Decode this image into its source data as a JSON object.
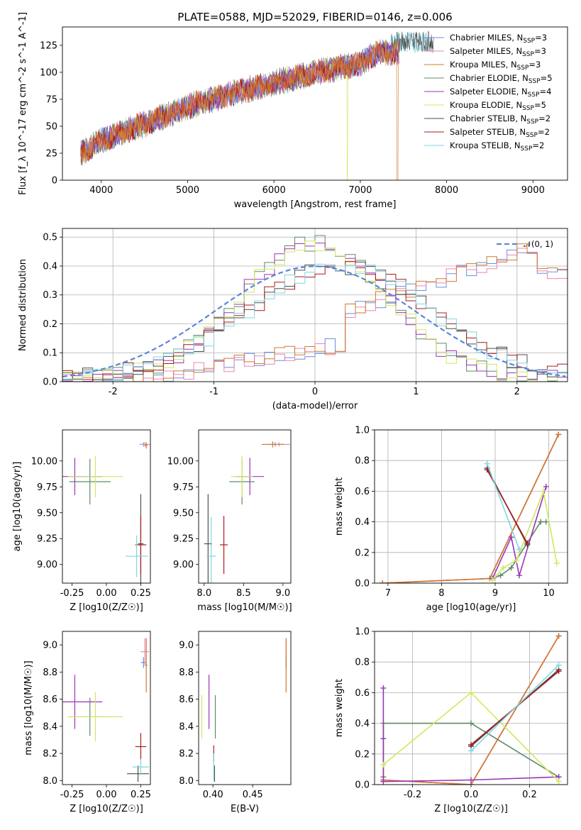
{
  "figure": {
    "title": "PLATE=0588, MJD=52029, FIBERID=0146, z=0.006"
  },
  "series_styles": [
    {
      "name": "Chabrier MILES, N_SSP=3",
      "nssp": "3",
      "label_base": "Chabrier MILES, N",
      "color": "#6a8ee0"
    },
    {
      "name": "Salpeter MILES, N_SSP=3",
      "nssp": "3",
      "label_base": "Salpeter MILES, N",
      "color": "#e887b6"
    },
    {
      "name": "Kroupa MILES, N_SSP=3",
      "nssp": "3",
      "label_base": "Kroupa MILES, N",
      "color": "#d3782b"
    },
    {
      "name": "Chabrier ELODIE, N_SSP=5",
      "nssp": "5",
      "label_base": "Chabrier ELODIE, N",
      "color": "#5f8a68"
    },
    {
      "name": "Salpeter ELODIE, N_SSP=4",
      "nssp": "4",
      "label_base": "Salpeter ELODIE, N",
      "color": "#9b35b5"
    },
    {
      "name": "Kroupa ELODIE, N_SSP=5",
      "nssp": "5",
      "label_base": "Kroupa ELODIE, N",
      "color": "#cfe860"
    },
    {
      "name": "Chabrier STELIB, N_SSP=2",
      "nssp": "2",
      "label_base": "Chabrier STELIB, N",
      "color": "#4f4f4f"
    },
    {
      "name": "Salpeter STELIB, N_SSP=2",
      "nssp": "2",
      "label_base": "Salpeter STELIB, N",
      "color": "#a81c1c"
    },
    {
      "name": "Kroupa STELIB, N_SSP=2",
      "nssp": "2",
      "label_base": "Kroupa STELIB, N",
      "color": "#7fd6e0"
    }
  ],
  "chart_data": [
    {
      "id": "spectrum",
      "type": "line",
      "title": "PLATE=0588, MJD=52029, FIBERID=0146, z=0.006",
      "xlabel": "wavelength [Angstrom, rest frame]",
      "ylabel": "Flux [f_λ 10^-17 erg cm^-2 s^-1 A^-1]",
      "xlim": [
        3550,
        9400
      ],
      "ylim": [
        0,
        142
      ],
      "xticks": [
        4000,
        5000,
        6000,
        7000,
        8000,
        9000
      ],
      "yticks": [
        0,
        25,
        50,
        75,
        100,
        125
      ],
      "grid": false,
      "legend": "right",
      "flux_trend": {
        "x": [
          3760,
          4000,
          4500,
          5000,
          5500,
          6000,
          6500,
          7000,
          7200
        ],
        "y": [
          25,
          37,
          52,
          68,
          80,
          90,
          100,
          108,
          118
        ]
      },
      "wavelength_range": [
        3760,
        7450
      ]
    },
    {
      "id": "residuals",
      "type": "histogram",
      "xlabel": "(data-model)/error",
      "ylabel": "Normed distribution",
      "xlim": [
        -2.5,
        2.5
      ],
      "ylim": [
        0,
        0.53
      ],
      "xticks": [
        -2,
        -1,
        0,
        1,
        2
      ],
      "yticks": [
        0.0,
        0.1,
        0.2,
        0.3,
        0.4,
        0.5
      ],
      "grid": true,
      "legend": "top-right",
      "reference": {
        "name": "N(0,1)",
        "label": "𝒩(0, 1)",
        "mean": 0,
        "std": 1,
        "color": "#5b86d6"
      },
      "groups": [
        {
          "series": [
            "Chabrier MILES, N_SSP=3",
            "Salpeter MILES, N_SSP=3",
            "Kroupa MILES, N_SSP=3"
          ],
          "kind": "rising",
          "amp": 0.45,
          "start": -1.5,
          "end": 2.2
        },
        {
          "series": [
            "Chabrier ELODIE, N_SSP=5",
            "Salpeter ELODIE, N_SSP=4",
            "Kroupa ELODIE, N_SSP=5"
          ],
          "kind": "gauss",
          "mean": 0.0,
          "std": 0.72,
          "peak": 0.47
        },
        {
          "series": [
            "Chabrier STELIB, N_SSP=2",
            "Salpeter STELIB, N_SSP=2",
            "Kroupa STELIB, N_SSP=2"
          ],
          "kind": "gauss",
          "mean": 0.25,
          "std": 0.9,
          "peak": 0.39
        }
      ]
    },
    {
      "id": "age_vs_Z",
      "type": "errorbar",
      "xlabel": "Z [log10(Z/Z☉)]",
      "ylabel": "age  [log10(age/yr)]",
      "xlim": [
        -0.32,
        0.32
      ],
      "ylim": [
        8.82,
        10.3
      ],
      "xticks": [
        -0.25,
        0.0,
        0.25
      ],
      "yticks": [
        9.0,
        9.25,
        9.5,
        9.75,
        10.0
      ],
      "points": [
        {
          "s": 0,
          "x": 0.27,
          "y": 10.16,
          "xe": 0.02,
          "ye": 0.02
        },
        {
          "s": 1,
          "x": 0.28,
          "y": 10.16,
          "xe": 0.04,
          "ye": 0.02
        },
        {
          "s": 2,
          "x": 0.29,
          "y": 10.15,
          "xe": 0.01,
          "ye": 0.03
        },
        {
          "s": 3,
          "x": -0.12,
          "y": 9.8,
          "xe": 0.15,
          "ye": 0.22
        },
        {
          "s": 4,
          "x": -0.23,
          "y": 9.85,
          "xe": 0.2,
          "ye": 0.18
        },
        {
          "s": 5,
          "x": -0.08,
          "y": 9.85,
          "xe": 0.2,
          "ye": 0.2
        },
        {
          "s": 6,
          "x": 0.25,
          "y": 9.2,
          "xe": 0.02,
          "ye": 0.48
        },
        {
          "s": 7,
          "x": 0.25,
          "y": 9.19,
          "xe": 0.04,
          "ye": 0.28
        },
        {
          "s": 8,
          "x": 0.22,
          "y": 9.08,
          "xe": 0.08,
          "ye": 0.2
        }
      ]
    },
    {
      "id": "age_vs_mass",
      "type": "errorbar",
      "xlabel": "mass [log10(M/M☉)]",
      "ylabel": "",
      "xlim": [
        7.93,
        9.1
      ],
      "ylim": [
        8.82,
        10.3
      ],
      "xticks": [
        8.0,
        8.5,
        9.0
      ],
      "yticks": [
        9.0,
        9.25,
        9.5,
        9.75,
        10.0
      ],
      "points": [
        {
          "s": 0,
          "x": 8.9,
          "y": 10.16,
          "xe": 0.12,
          "ye": 0.02
        },
        {
          "s": 1,
          "x": 8.95,
          "y": 10.16,
          "xe": 0.14,
          "ye": 0.02
        },
        {
          "s": 2,
          "x": 8.87,
          "y": 10.16,
          "xe": 0.14,
          "ye": 0.03
        },
        {
          "s": 3,
          "x": 8.48,
          "y": 9.8,
          "xe": 0.16,
          "ye": 0.22
        },
        {
          "s": 4,
          "x": 8.58,
          "y": 9.85,
          "xe": 0.18,
          "ye": 0.18
        },
        {
          "s": 5,
          "x": 8.48,
          "y": 9.85,
          "xe": 0.14,
          "ye": 0.2
        },
        {
          "s": 6,
          "x": 8.05,
          "y": 9.2,
          "xe": 0.05,
          "ye": 0.48
        },
        {
          "s": 7,
          "x": 8.25,
          "y": 9.19,
          "xe": 0.05,
          "ye": 0.28
        },
        {
          "s": 8,
          "x": 8.09,
          "y": 9.08,
          "xe": 0.06,
          "ye": 0.38
        }
      ]
    },
    {
      "id": "weight_vs_age",
      "type": "line",
      "xlabel": "age  [log10(age/yr)]",
      "ylabel": "mass weight",
      "xlim": [
        6.75,
        10.35
      ],
      "ylim": [
        0,
        1.0
      ],
      "xticks": [
        7,
        8,
        9,
        10
      ],
      "yticks": [
        0.0,
        0.2,
        0.4,
        0.6,
        0.8,
        1.0
      ],
      "grid": true,
      "lines": [
        {
          "s": 0,
          "x": [
            6.9,
            8.9,
            10.18
          ],
          "y": [
            0.0,
            0.03,
            0.97
          ]
        },
        {
          "s": 1,
          "x": [
            6.9,
            8.9,
            10.18
          ],
          "y": [
            0.0,
            0.03,
            0.97
          ]
        },
        {
          "s": 2,
          "x": [
            6.9,
            8.9,
            10.18
          ],
          "y": [
            0.0,
            0.03,
            0.97
          ]
        },
        {
          "s": 3,
          "x": [
            8.95,
            9.1,
            9.3,
            9.85,
            9.95
          ],
          "y": [
            0.03,
            0.05,
            0.1,
            0.4,
            0.4
          ]
        },
        {
          "s": 4,
          "x": [
            8.95,
            9.3,
            9.45,
            9.95
          ],
          "y": [
            0.03,
            0.3,
            0.05,
            0.63
          ]
        },
        {
          "s": 5,
          "x": [
            8.95,
            9.15,
            9.4,
            9.9,
            10.15
          ],
          "y": [
            0.02,
            0.1,
            0.15,
            0.6,
            0.13
          ]
        },
        {
          "s": 6,
          "x": [
            8.85,
            9.6
          ],
          "y": [
            0.75,
            0.25
          ]
        },
        {
          "s": 7,
          "x": [
            8.85,
            9.6
          ],
          "y": [
            0.74,
            0.26
          ]
        },
        {
          "s": 8,
          "x": [
            8.85,
            9.45
          ],
          "y": [
            0.78,
            0.22
          ]
        }
      ]
    },
    {
      "id": "mass_vs_Z",
      "type": "errorbar",
      "xlabel": "Z [log10(Z/Z☉)]",
      "ylabel": "mass [log10(M/M☉)]",
      "xlim": [
        -0.32,
        0.32
      ],
      "ylim": [
        7.97,
        9.1
      ],
      "xticks": [
        -0.25,
        0.0,
        0.25
      ],
      "yticks": [
        8.0,
        8.2,
        8.4,
        8.6,
        8.8,
        9.0
      ],
      "points": [
        {
          "s": 0,
          "x": 0.27,
          "y": 8.87,
          "xe": 0.02,
          "ye": 0.04
        },
        {
          "s": 1,
          "x": 0.28,
          "y": 8.95,
          "xe": 0.03,
          "ye": 0.1
        },
        {
          "s": 2,
          "x": 0.29,
          "y": 8.85,
          "xe": 0.01,
          "ye": 0.2
        },
        {
          "s": 3,
          "x": -0.12,
          "y": 8.47,
          "xe": 0.15,
          "ye": 0.14
        },
        {
          "s": 4,
          "x": -0.23,
          "y": 8.58,
          "xe": 0.2,
          "ye": 0.2
        },
        {
          "s": 5,
          "x": -0.08,
          "y": 8.47,
          "xe": 0.2,
          "ye": 0.18
        },
        {
          "s": 6,
          "x": 0.23,
          "y": 8.05,
          "xe": 0.08,
          "ye": 0.06
        },
        {
          "s": 7,
          "x": 0.25,
          "y": 8.25,
          "xe": 0.04,
          "ye": 0.1
        },
        {
          "s": 8,
          "x": 0.25,
          "y": 8.1,
          "xe": 0.06,
          "ye": 0.06
        }
      ]
    },
    {
      "id": "mass_vs_EBV",
      "type": "errorbar",
      "xlabel": "E(B-V)",
      "ylabel": "",
      "xlim": [
        0.382,
        0.498
      ],
      "ylim": [
        7.97,
        9.1
      ],
      "xticks": [
        0.4,
        0.45
      ],
      "yticks": [
        8.0,
        8.2,
        8.4,
        8.6,
        8.8,
        9.0
      ],
      "points": [
        {
          "s": 0,
          "x": 0.492,
          "y": 8.87,
          "xe": 0,
          "ye": 0.04
        },
        {
          "s": 1,
          "x": 0.492,
          "y": 8.95,
          "xe": 0,
          "ye": 0.1
        },
        {
          "s": 2,
          "x": 0.492,
          "y": 8.85,
          "xe": 0,
          "ye": 0.2
        },
        {
          "s": 3,
          "x": 0.403,
          "y": 8.47,
          "xe": 0,
          "ye": 0.16
        },
        {
          "s": 4,
          "x": 0.395,
          "y": 8.58,
          "xe": 0,
          "ye": 0.2
        },
        {
          "s": 5,
          "x": 0.386,
          "y": 8.47,
          "xe": 0,
          "ye": 0.16
        },
        {
          "s": 6,
          "x": 0.402,
          "y": 8.05,
          "xe": 0,
          "ye": 0.06
        },
        {
          "s": 7,
          "x": 0.401,
          "y": 8.2,
          "xe": 0,
          "ye": 0.06
        },
        {
          "s": 8,
          "x": 0.401,
          "y": 8.1,
          "xe": 0,
          "ye": 0.1
        }
      ]
    },
    {
      "id": "weight_vs_Z",
      "type": "line",
      "xlabel": "Z [log10(Z/Z☉)]",
      "ylabel": "mass weight",
      "xlim": [
        -0.33,
        0.33
      ],
      "ylim": [
        0,
        1.0
      ],
      "xticks": [
        -0.2,
        0.0,
        0.2
      ],
      "yticks": [
        0.0,
        0.2,
        0.4,
        0.6,
        0.8,
        1.0
      ],
      "grid": true,
      "lines": [
        {
          "s": 0,
          "x": [
            -0.3,
            0.0,
            0.3
          ],
          "y": [
            0.03,
            0.0,
            0.97
          ]
        },
        {
          "s": 1,
          "x": [
            -0.3,
            0.0,
            0.3
          ],
          "y": [
            0.03,
            0.0,
            0.97
          ]
        },
        {
          "s": 2,
          "x": [
            -0.3,
            0.0,
            0.3
          ],
          "y": [
            0.03,
            0.0,
            0.97
          ]
        },
        {
          "s": 3,
          "x": [
            -0.3,
            -0.3,
            0.0,
            0.3
          ],
          "y": [
            0.05,
            0.4,
            0.4,
            0.05
          ]
        },
        {
          "s": 4,
          "x": [
            -0.3,
            -0.3,
            -0.3,
            0.0,
            0.3
          ],
          "y": [
            0.63,
            0.3,
            0.02,
            0.03,
            0.05
          ]
        },
        {
          "s": 5,
          "x": [
            -0.3,
            0.0,
            0.3
          ],
          "y": [
            0.13,
            0.6,
            0.02
          ]
        },
        {
          "s": 6,
          "x": [
            0.0,
            0.3
          ],
          "y": [
            0.25,
            0.75
          ]
        },
        {
          "s": 7,
          "x": [
            0.0,
            0.3
          ],
          "y": [
            0.26,
            0.74
          ]
        },
        {
          "s": 8,
          "x": [
            0.0,
            0.3
          ],
          "y": [
            0.22,
            0.78
          ]
        }
      ]
    }
  ]
}
